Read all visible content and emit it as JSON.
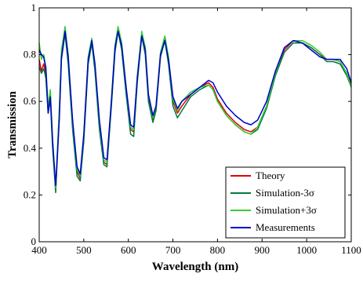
{
  "chart_data": {
    "type": "line",
    "title": "",
    "xlabel": "Wavelength (nm)",
    "ylabel": "Transmission",
    "xlim": [
      400,
      1100
    ],
    "ylim": [
      0,
      1
    ],
    "xticks": [
      "400",
      "500",
      "600",
      "700",
      "800",
      "900",
      "1000",
      "1100"
    ],
    "yticks": [
      "0",
      "0.2",
      "0.4",
      "0.6",
      "0.8",
      "1"
    ],
    "grid": false,
    "legend_position": "bottom-right",
    "series": [
      {
        "name": "Theory",
        "color": "#e60000",
        "points": [
          [
            400,
            0.78
          ],
          [
            405,
            0.73
          ],
          [
            410,
            0.76
          ],
          [
            415,
            0.72
          ],
          [
            420,
            0.57
          ],
          [
            425,
            0.63
          ],
          [
            430,
            0.42
          ],
          [
            437,
            0.22
          ],
          [
            445,
            0.55
          ],
          [
            450,
            0.8
          ],
          [
            458,
            0.9
          ],
          [
            465,
            0.78
          ],
          [
            475,
            0.5
          ],
          [
            485,
            0.3
          ],
          [
            492,
            0.27
          ],
          [
            500,
            0.45
          ],
          [
            510,
            0.78
          ],
          [
            518,
            0.86
          ],
          [
            525,
            0.75
          ],
          [
            535,
            0.5
          ],
          [
            545,
            0.34
          ],
          [
            552,
            0.33
          ],
          [
            562,
            0.6
          ],
          [
            570,
            0.83
          ],
          [
            577,
            0.91
          ],
          [
            585,
            0.84
          ],
          [
            595,
            0.65
          ],
          [
            605,
            0.48
          ],
          [
            612,
            0.47
          ],
          [
            620,
            0.7
          ],
          [
            630,
            0.89
          ],
          [
            638,
            0.82
          ],
          [
            645,
            0.62
          ],
          [
            655,
            0.52
          ],
          [
            662,
            0.57
          ],
          [
            672,
            0.8
          ],
          [
            682,
            0.87
          ],
          [
            690,
            0.78
          ],
          [
            700,
            0.6
          ],
          [
            710,
            0.55
          ],
          [
            720,
            0.58
          ],
          [
            740,
            0.63
          ],
          [
            760,
            0.66
          ],
          [
            780,
            0.68
          ],
          [
            790,
            0.66
          ],
          [
            800,
            0.61
          ],
          [
            820,
            0.55
          ],
          [
            840,
            0.51
          ],
          [
            860,
            0.48
          ],
          [
            875,
            0.47
          ],
          [
            890,
            0.49
          ],
          [
            910,
            0.58
          ],
          [
            930,
            0.72
          ],
          [
            950,
            0.82
          ],
          [
            970,
            0.86
          ],
          [
            990,
            0.85
          ],
          [
            1010,
            0.83
          ],
          [
            1030,
            0.8
          ],
          [
            1045,
            0.78
          ],
          [
            1060,
            0.78
          ],
          [
            1075,
            0.77
          ],
          [
            1090,
            0.72
          ],
          [
            1100,
            0.67
          ]
        ]
      },
      {
        "name": "Simulation-3σ",
        "color": "#007a3d",
        "points": [
          [
            400,
            0.75
          ],
          [
            405,
            0.72
          ],
          [
            410,
            0.74
          ],
          [
            415,
            0.7
          ],
          [
            420,
            0.55
          ],
          [
            425,
            0.61
          ],
          [
            430,
            0.4
          ],
          [
            437,
            0.21
          ],
          [
            445,
            0.53
          ],
          [
            450,
            0.78
          ],
          [
            458,
            0.89
          ],
          [
            465,
            0.76
          ],
          [
            475,
            0.48
          ],
          [
            485,
            0.28
          ],
          [
            492,
            0.26
          ],
          [
            500,
            0.43
          ],
          [
            510,
            0.76
          ],
          [
            518,
            0.85
          ],
          [
            525,
            0.73
          ],
          [
            535,
            0.48
          ],
          [
            545,
            0.33
          ],
          [
            552,
            0.32
          ],
          [
            562,
            0.58
          ],
          [
            570,
            0.81
          ],
          [
            577,
            0.9
          ],
          [
            585,
            0.82
          ],
          [
            595,
            0.63
          ],
          [
            605,
            0.46
          ],
          [
            612,
            0.45
          ],
          [
            620,
            0.68
          ],
          [
            630,
            0.88
          ],
          [
            638,
            0.8
          ],
          [
            645,
            0.6
          ],
          [
            655,
            0.51
          ],
          [
            662,
            0.56
          ],
          [
            672,
            0.79
          ],
          [
            682,
            0.86
          ],
          [
            690,
            0.76
          ],
          [
            700,
            0.58
          ],
          [
            710,
            0.53
          ],
          [
            720,
            0.56
          ],
          [
            740,
            0.62
          ],
          [
            760,
            0.65
          ],
          [
            780,
            0.67
          ],
          [
            790,
            0.65
          ],
          [
            800,
            0.6
          ],
          [
            820,
            0.54
          ],
          [
            840,
            0.5
          ],
          [
            860,
            0.47
          ],
          [
            875,
            0.46
          ],
          [
            890,
            0.48
          ],
          [
            910,
            0.57
          ],
          [
            930,
            0.71
          ],
          [
            950,
            0.81
          ],
          [
            970,
            0.85
          ],
          [
            990,
            0.85
          ],
          [
            1010,
            0.83
          ],
          [
            1030,
            0.8
          ],
          [
            1045,
            0.77
          ],
          [
            1060,
            0.77
          ],
          [
            1075,
            0.76
          ],
          [
            1090,
            0.71
          ],
          [
            1100,
            0.66
          ]
        ]
      },
      {
        "name": "Simulation+3σ",
        "color": "#33cc33",
        "points": [
          [
            400,
            0.85
          ],
          [
            405,
            0.78
          ],
          [
            410,
            0.8
          ],
          [
            415,
            0.75
          ],
          [
            420,
            0.58
          ],
          [
            425,
            0.65
          ],
          [
            430,
            0.44
          ],
          [
            437,
            0.23
          ],
          [
            445,
            0.57
          ],
          [
            450,
            0.82
          ],
          [
            458,
            0.92
          ],
          [
            465,
            0.8
          ],
          [
            475,
            0.51
          ],
          [
            485,
            0.31
          ],
          [
            492,
            0.28
          ],
          [
            500,
            0.46
          ],
          [
            510,
            0.79
          ],
          [
            518,
            0.87
          ],
          [
            525,
            0.76
          ],
          [
            535,
            0.51
          ],
          [
            545,
            0.35
          ],
          [
            552,
            0.34
          ],
          [
            562,
            0.61
          ],
          [
            570,
            0.84
          ],
          [
            577,
            0.92
          ],
          [
            585,
            0.85
          ],
          [
            595,
            0.66
          ],
          [
            605,
            0.49
          ],
          [
            612,
            0.48
          ],
          [
            620,
            0.71
          ],
          [
            630,
            0.9
          ],
          [
            638,
            0.83
          ],
          [
            645,
            0.63
          ],
          [
            655,
            0.53
          ],
          [
            662,
            0.58
          ],
          [
            672,
            0.81
          ],
          [
            682,
            0.88
          ],
          [
            690,
            0.79
          ],
          [
            700,
            0.61
          ],
          [
            710,
            0.56
          ],
          [
            720,
            0.6
          ],
          [
            740,
            0.64
          ],
          [
            760,
            0.66
          ],
          [
            780,
            0.67
          ],
          [
            790,
            0.65
          ],
          [
            800,
            0.6
          ],
          [
            820,
            0.54
          ],
          [
            840,
            0.5
          ],
          [
            860,
            0.47
          ],
          [
            875,
            0.46
          ],
          [
            890,
            0.49
          ],
          [
            910,
            0.58
          ],
          [
            930,
            0.72
          ],
          [
            950,
            0.83
          ],
          [
            970,
            0.86
          ],
          [
            990,
            0.86
          ],
          [
            1010,
            0.84
          ],
          [
            1030,
            0.81
          ],
          [
            1045,
            0.78
          ],
          [
            1060,
            0.78
          ],
          [
            1075,
            0.77
          ],
          [
            1090,
            0.72
          ],
          [
            1100,
            0.66
          ]
        ]
      },
      {
        "name": "Measurements",
        "color": "#0000cc",
        "points": [
          [
            400,
            0.82
          ],
          [
            405,
            0.8
          ],
          [
            410,
            0.79
          ],
          [
            415,
            0.74
          ],
          [
            420,
            0.55
          ],
          [
            425,
            0.62
          ],
          [
            430,
            0.43
          ],
          [
            437,
            0.24
          ],
          [
            445,
            0.52
          ],
          [
            450,
            0.79
          ],
          [
            458,
            0.9
          ],
          [
            465,
            0.79
          ],
          [
            475,
            0.52
          ],
          [
            485,
            0.32
          ],
          [
            492,
            0.29
          ],
          [
            500,
            0.46
          ],
          [
            510,
            0.78
          ],
          [
            518,
            0.86
          ],
          [
            525,
            0.76
          ],
          [
            535,
            0.52
          ],
          [
            545,
            0.36
          ],
          [
            552,
            0.35
          ],
          [
            562,
            0.6
          ],
          [
            570,
            0.83
          ],
          [
            577,
            0.9
          ],
          [
            585,
            0.84
          ],
          [
            595,
            0.66
          ],
          [
            605,
            0.5
          ],
          [
            612,
            0.49
          ],
          [
            620,
            0.7
          ],
          [
            630,
            0.88
          ],
          [
            638,
            0.82
          ],
          [
            645,
            0.63
          ],
          [
            655,
            0.54
          ],
          [
            662,
            0.58
          ],
          [
            672,
            0.8
          ],
          [
            682,
            0.86
          ],
          [
            690,
            0.78
          ],
          [
            700,
            0.62
          ],
          [
            710,
            0.57
          ],
          [
            720,
            0.6
          ],
          [
            740,
            0.63
          ],
          [
            760,
            0.66
          ],
          [
            780,
            0.69
          ],
          [
            790,
            0.68
          ],
          [
            800,
            0.64
          ],
          [
            820,
            0.58
          ],
          [
            840,
            0.54
          ],
          [
            860,
            0.51
          ],
          [
            875,
            0.5
          ],
          [
            890,
            0.52
          ],
          [
            910,
            0.6
          ],
          [
            930,
            0.73
          ],
          [
            950,
            0.83
          ],
          [
            970,
            0.86
          ],
          [
            990,
            0.85
          ],
          [
            1010,
            0.82
          ],
          [
            1030,
            0.79
          ],
          [
            1045,
            0.78
          ],
          [
            1060,
            0.78
          ],
          [
            1075,
            0.78
          ],
          [
            1090,
            0.74
          ],
          [
            1100,
            0.68
          ]
        ]
      }
    ]
  }
}
